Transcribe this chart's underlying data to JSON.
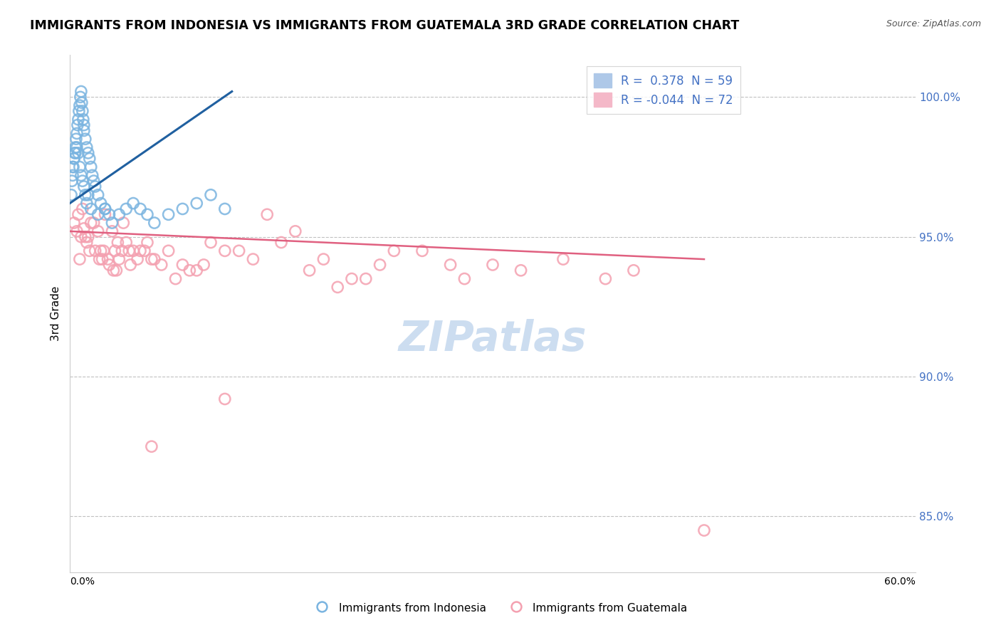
{
  "title": "IMMIGRANTS FROM INDONESIA VS IMMIGRANTS FROM GUATEMALA 3RD GRADE CORRELATION CHART",
  "source": "Source: ZipAtlas.com",
  "ylabel": "3rd Grade",
  "xlim": [
    0.0,
    60.0
  ],
  "ylim": [
    83.0,
    101.5
  ],
  "yticks": [
    85.0,
    90.0,
    95.0,
    100.0
  ],
  "right_ytick_labels": [
    "85.0%",
    "90.0%",
    "95.0%",
    "100.0%"
  ],
  "blue_color": "#7ab4e0",
  "pink_color": "#f4a0b0",
  "blue_line_color": "#2060a0",
  "pink_line_color": "#e06080",
  "watermark_color": "#ccddf0",
  "blue_scatter_x": [
    0.1,
    0.15,
    0.2,
    0.25,
    0.3,
    0.35,
    0.4,
    0.45,
    0.5,
    0.55,
    0.6,
    0.65,
    0.7,
    0.75,
    0.8,
    0.85,
    0.9,
    0.95,
    1.0,
    1.0,
    1.1,
    1.2,
    1.3,
    1.4,
    1.5,
    1.6,
    1.7,
    1.8,
    2.0,
    2.2,
    2.5,
    2.8,
    3.0,
    3.5,
    4.0,
    4.5,
    5.0,
    5.5,
    6.0,
    7.0,
    8.0,
    9.0,
    10.0,
    11.0,
    0.2,
    0.3,
    0.4,
    0.5,
    0.6,
    0.7,
    0.8,
    0.9,
    1.0,
    1.1,
    1.2,
    1.3,
    1.5,
    2.0,
    2.5
  ],
  "blue_scatter_y": [
    96.5,
    97.0,
    97.2,
    97.5,
    97.8,
    98.0,
    98.2,
    98.5,
    98.7,
    99.0,
    99.2,
    99.5,
    99.7,
    100.0,
    100.2,
    99.8,
    99.5,
    99.2,
    99.0,
    98.8,
    98.5,
    98.2,
    98.0,
    97.8,
    97.5,
    97.2,
    97.0,
    96.8,
    96.5,
    96.2,
    96.0,
    95.8,
    95.5,
    95.8,
    96.0,
    96.2,
    96.0,
    95.8,
    95.5,
    95.8,
    96.0,
    96.2,
    96.5,
    96.0,
    97.5,
    97.8,
    98.0,
    98.2,
    98.0,
    97.5,
    97.2,
    97.0,
    96.8,
    96.5,
    96.2,
    96.5,
    96.0,
    95.8,
    96.0
  ],
  "pink_scatter_x": [
    0.3,
    0.5,
    0.8,
    1.0,
    1.2,
    1.5,
    1.8,
    2.0,
    2.2,
    2.5,
    2.8,
    3.0,
    3.2,
    3.5,
    3.8,
    4.0,
    4.5,
    5.0,
    5.5,
    6.0,
    7.0,
    8.0,
    9.0,
    10.0,
    12.0,
    14.0,
    16.0,
    18.0,
    20.0,
    22.0,
    25.0,
    28.0,
    30.0,
    35.0,
    40.0,
    45.0,
    0.6,
    0.9,
    1.1,
    1.4,
    1.7,
    2.1,
    2.4,
    2.7,
    3.1,
    3.4,
    3.7,
    4.2,
    4.8,
    5.3,
    5.8,
    6.5,
    7.5,
    8.5,
    9.5,
    11.0,
    13.0,
    15.0,
    17.0,
    19.0,
    21.0,
    23.0,
    27.0,
    32.0,
    38.0,
    0.7,
    1.3,
    2.3,
    3.3,
    4.3,
    5.8,
    11.0
  ],
  "pink_scatter_y": [
    95.5,
    95.2,
    95.0,
    95.3,
    94.8,
    95.5,
    94.5,
    95.2,
    94.5,
    95.8,
    94.0,
    95.2,
    94.5,
    94.2,
    95.5,
    94.8,
    94.5,
    94.5,
    94.8,
    94.2,
    94.5,
    94.0,
    93.8,
    94.8,
    94.5,
    95.8,
    95.2,
    94.2,
    93.5,
    94.0,
    94.5,
    93.5,
    94.0,
    94.2,
    93.8,
    84.5,
    95.8,
    96.0,
    95.0,
    94.5,
    95.5,
    94.2,
    94.5,
    94.2,
    93.8,
    94.8,
    94.5,
    94.5,
    94.2,
    94.5,
    94.2,
    94.0,
    93.5,
    93.8,
    94.0,
    94.5,
    94.2,
    94.8,
    93.8,
    93.2,
    93.5,
    94.5,
    94.0,
    93.8,
    93.5,
    94.2,
    95.0,
    94.2,
    93.8,
    94.0,
    87.5,
    89.2
  ],
  "blue_trendline_x": [
    0.0,
    11.5
  ],
  "blue_trendline_y": [
    96.2,
    100.2
  ],
  "pink_trendline_x": [
    0.0,
    45.0
  ],
  "pink_trendline_y": [
    95.2,
    94.2
  ]
}
